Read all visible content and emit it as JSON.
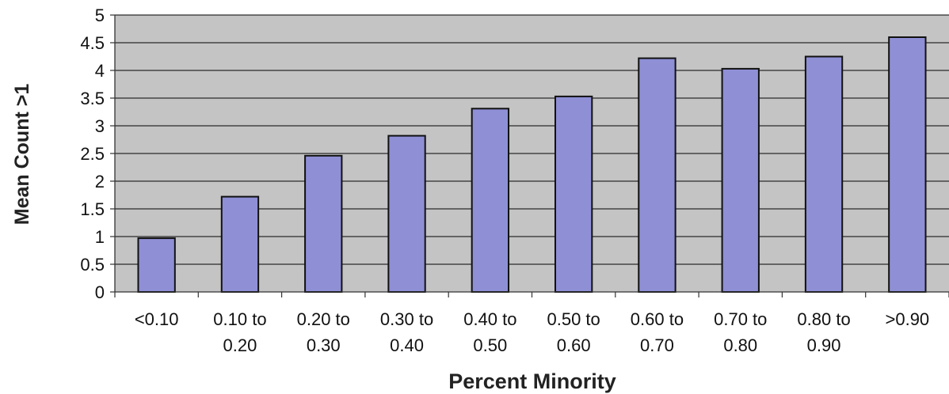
{
  "chart_data": {
    "type": "bar",
    "title": "",
    "xlabel": "Percent Minority",
    "ylabel": "Mean Count >1",
    "ylim": [
      0,
      5
    ],
    "yticks": [
      "0",
      "0.5",
      "1",
      "1.5",
      "2",
      "2.5",
      "3",
      "3.5",
      "4",
      "4.5",
      "5"
    ],
    "categories": [
      [
        "<0.10",
        ""
      ],
      [
        "0.10 to",
        "0.20"
      ],
      [
        "0.20 to",
        "0.30"
      ],
      [
        "0.30 to",
        "0.40"
      ],
      [
        "0.40 to",
        "0.50"
      ],
      [
        "0.50 to",
        "0.60"
      ],
      [
        "0.60 to",
        "0.70"
      ],
      [
        "0.70 to",
        "0.80"
      ],
      [
        "0.80 to",
        "0.90"
      ],
      [
        ">0.90",
        ""
      ]
    ],
    "values": [
      0.97,
      1.72,
      2.46,
      2.82,
      3.31,
      3.53,
      4.22,
      4.03,
      4.25,
      4.6
    ],
    "grid": true,
    "legend": "none",
    "colors": {
      "bar": "#8f8fd6",
      "bar_edge": "#111111",
      "plot_bg": "#c4c4c4",
      "grid": "#2a2a2a"
    }
  }
}
